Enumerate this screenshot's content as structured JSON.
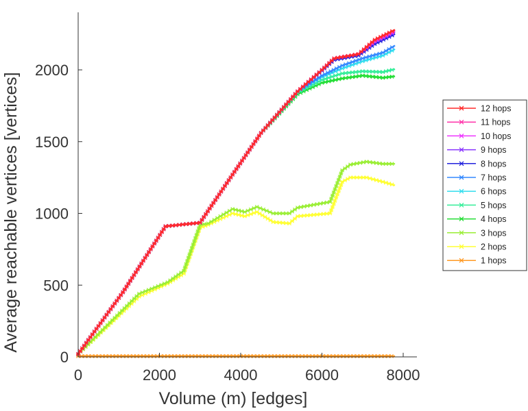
{
  "chart_data": {
    "type": "line",
    "title": "",
    "xlabel": "Volume (m) [edges]",
    "ylabel": "Average reachable vertices [vertices]",
    "xlim": [
      0,
      8300
    ],
    "ylim": [
      0,
      2400
    ],
    "xticks": [
      0,
      2000,
      4000,
      6000,
      8000
    ],
    "yticks": [
      0,
      500,
      1000,
      1500,
      2000
    ],
    "xtick_labels": [
      "0",
      "2000",
      "4000",
      "6000",
      "8000"
    ],
    "ytick_labels": [
      "0",
      "500",
      "1000",
      "1500",
      "2000"
    ],
    "grid": false,
    "legend_position": "right",
    "marker": "asterisk",
    "series": [
      {
        "name": "12 hops",
        "color": "#ff2a2a",
        "x": [
          0,
          1100,
          2150,
          3000,
          3800,
          4500,
          5400,
          6000,
          6300,
          6900,
          7300,
          7800
        ],
        "y": [
          20,
          450,
          910,
          935,
          1270,
          1560,
          1850,
          2000,
          2080,
          2110,
          2210,
          2280
        ]
      },
      {
        "name": "11 hops",
        "color": "#ff33aa",
        "x": [
          0,
          1100,
          2150,
          3000,
          3800,
          4500,
          5400,
          6000,
          6300,
          6900,
          7300,
          7800
        ],
        "y": [
          20,
          450,
          910,
          935,
          1270,
          1560,
          1850,
          2000,
          2080,
          2110,
          2205,
          2275
        ]
      },
      {
        "name": "10 hops",
        "color": "#ee33ff",
        "x": [
          0,
          1100,
          2150,
          3000,
          3800,
          4500,
          5400,
          6000,
          6300,
          6900,
          7300,
          7800
        ],
        "y": [
          20,
          450,
          910,
          935,
          1270,
          1560,
          1850,
          2000,
          2080,
          2110,
          2200,
          2270
        ]
      },
      {
        "name": "9 hops",
        "color": "#8833ff",
        "x": [
          0,
          1100,
          2150,
          3000,
          3800,
          4500,
          5400,
          6000,
          6300,
          6900,
          7300,
          7800
        ],
        "y": [
          20,
          450,
          910,
          935,
          1270,
          1560,
          1850,
          2000,
          2080,
          2110,
          2195,
          2262
        ]
      },
      {
        "name": "8 hops",
        "color": "#2222dd",
        "x": [
          0,
          1100,
          2150,
          3000,
          3800,
          4500,
          5400,
          6000,
          6300,
          6900,
          7300,
          7800
        ],
        "y": [
          20,
          450,
          910,
          935,
          1270,
          1560,
          1850,
          1995,
          2070,
          2100,
          2180,
          2250
        ]
      },
      {
        "name": "7 hops",
        "color": "#3388ff",
        "x": [
          0,
          1100,
          2150,
          3000,
          3800,
          4500,
          5400,
          6000,
          6500,
          7000,
          7500,
          7800
        ],
        "y": [
          20,
          450,
          910,
          935,
          1270,
          1560,
          1850,
          1960,
          2030,
          2080,
          2120,
          2170
        ]
      },
      {
        "name": "6 hops",
        "color": "#33ddee",
        "x": [
          0,
          1100,
          2150,
          3000,
          3800,
          4500,
          5400,
          6000,
          6500,
          7000,
          7500,
          7800
        ],
        "y": [
          20,
          450,
          910,
          935,
          1270,
          1560,
          1850,
          1950,
          2010,
          2060,
          2100,
          2145
        ]
      },
      {
        "name": "5 hops",
        "color": "#33ee99",
        "x": [
          0,
          1100,
          2150,
          3000,
          3800,
          4500,
          5400,
          6000,
          6500,
          7000,
          7500,
          7800
        ],
        "y": [
          20,
          450,
          910,
          935,
          1270,
          1560,
          1840,
          1930,
          1975,
          1990,
          1985,
          2005
        ]
      },
      {
        "name": "4 hops",
        "color": "#22dd33",
        "x": [
          0,
          1100,
          2150,
          3000,
          3800,
          4500,
          5400,
          6000,
          6500,
          7000,
          7500,
          7800
        ],
        "y": [
          20,
          450,
          910,
          935,
          1270,
          1560,
          1830,
          1910,
          1940,
          1960,
          1945,
          1955
        ]
      },
      {
        "name": "3 hops",
        "color": "#99ee33",
        "x": [
          0,
          1500,
          2200,
          2600,
          3000,
          3200,
          3800,
          4100,
          4400,
          4800,
          5200,
          5400,
          5800,
          6200,
          6500,
          6700,
          7100,
          7500,
          7800
        ],
        "y": [
          20,
          440,
          520,
          600,
          920,
          930,
          1030,
          1010,
          1045,
          1000,
          1000,
          1040,
          1060,
          1080,
          1300,
          1340,
          1360,
          1345,
          1345
        ]
      },
      {
        "name": "2 hops",
        "color": "#ffff33",
        "x": [
          0,
          1500,
          2200,
          2600,
          3000,
          3200,
          3800,
          4100,
          4400,
          4800,
          5200,
          5400,
          5800,
          6200,
          6500,
          6700,
          7100,
          7500,
          7800
        ],
        "y": [
          20,
          420,
          510,
          580,
          900,
          920,
          1000,
          980,
          1010,
          940,
          930,
          980,
          990,
          1000,
          1220,
          1250,
          1250,
          1220,
          1195
        ]
      },
      {
        "name": "1 hops",
        "color": "#ff9922",
        "x": [
          0,
          7800
        ],
        "y": [
          5,
          5
        ]
      }
    ]
  }
}
